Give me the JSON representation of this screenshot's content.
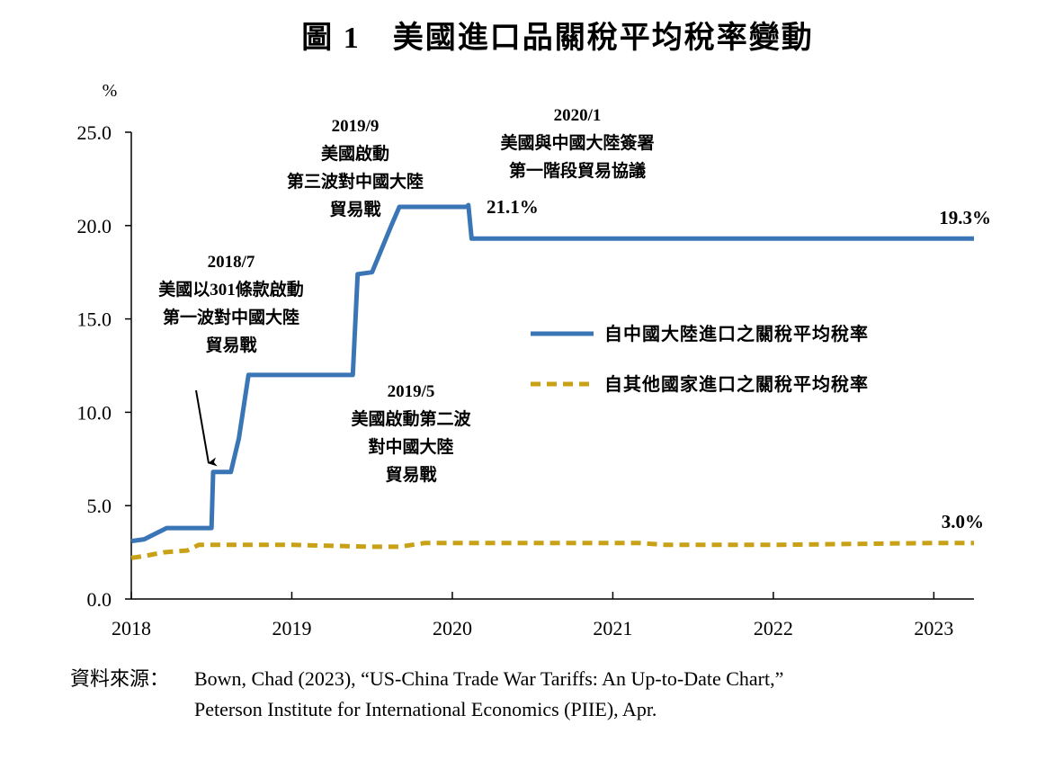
{
  "chart_data": {
    "type": "line",
    "title": "圖 1　美國進口品關稅平均稅率變動",
    "ylabel": "%",
    "xlabel": "",
    "ylim": [
      0,
      25
    ],
    "xlim": [
      2018.0,
      2023.25
    ],
    "y_ticks": [
      "0.0",
      "5.0",
      "10.0",
      "15.0",
      "20.0",
      "25.0"
    ],
    "x_ticks": [
      "2018",
      "2019",
      "2020",
      "2021",
      "2022",
      "2023"
    ],
    "grid": false,
    "legend_position": "center-right",
    "series": [
      {
        "name": "自中國大陸進口之關稅平均稅率",
        "color": "#3a75b5",
        "style": "solid",
        "points": [
          [
            2018.0,
            3.1
          ],
          [
            2018.08,
            3.2
          ],
          [
            2018.22,
            3.8
          ],
          [
            2018.5,
            3.8
          ],
          [
            2018.51,
            6.8
          ],
          [
            2018.62,
            6.8
          ],
          [
            2018.67,
            8.6
          ],
          [
            2018.73,
            12.0
          ],
          [
            2019.0,
            12.0
          ],
          [
            2019.38,
            12.0
          ],
          [
            2019.41,
            17.4
          ],
          [
            2019.5,
            17.5
          ],
          [
            2019.62,
            20.0
          ],
          [
            2019.67,
            21.0
          ],
          [
            2019.9,
            21.0
          ],
          [
            2020.0,
            21.0
          ],
          [
            2020.09,
            21.0
          ],
          [
            2020.1,
            21.1
          ],
          [
            2020.12,
            19.3
          ],
          [
            2023.25,
            19.3
          ]
        ]
      },
      {
        "name": "自其他國家進口之關稅平均稅率",
        "color": "#c8a116",
        "style": "dashed",
        "points": [
          [
            2018.0,
            2.2
          ],
          [
            2018.08,
            2.3
          ],
          [
            2018.2,
            2.5
          ],
          [
            2018.35,
            2.6
          ],
          [
            2018.42,
            2.9
          ],
          [
            2018.6,
            2.9
          ],
          [
            2019.0,
            2.9
          ],
          [
            2019.5,
            2.8
          ],
          [
            2019.67,
            2.8
          ],
          [
            2019.83,
            3.0
          ],
          [
            2020.0,
            3.0
          ],
          [
            2020.5,
            3.0
          ],
          [
            2021.0,
            3.0
          ],
          [
            2021.16,
            3.0
          ],
          [
            2021.33,
            2.9
          ],
          [
            2022.0,
            2.9
          ],
          [
            2023.0,
            3.0
          ],
          [
            2023.25,
            3.0
          ]
        ]
      }
    ],
    "annotations": [
      {
        "lines": [
          "2018/7",
          "美國以301條款啟動",
          "第一波對中國大陸",
          "貿易戰"
        ]
      },
      {
        "lines": [
          "2019/5",
          "美國啟動第二波",
          "對中國大陸",
          "貿易戰"
        ]
      },
      {
        "lines": [
          "2019/9",
          "美國啟動",
          "第三波對中國大陸",
          "貿易戰"
        ]
      },
      {
        "lines": [
          "2020/1",
          "美國與中國大陸簽署",
          "第一階段貿易協議"
        ]
      }
    ],
    "value_labels": [
      "21.1%",
      "19.3%",
      "3.0%"
    ],
    "source": {
      "label": "資料來源：",
      "line1": "Bown, Chad (2023), “US-China Trade War Tariffs: An Up-to-Date Chart,”",
      "line2": "Peterson Institute for International Economics (PIIE), Apr."
    }
  }
}
